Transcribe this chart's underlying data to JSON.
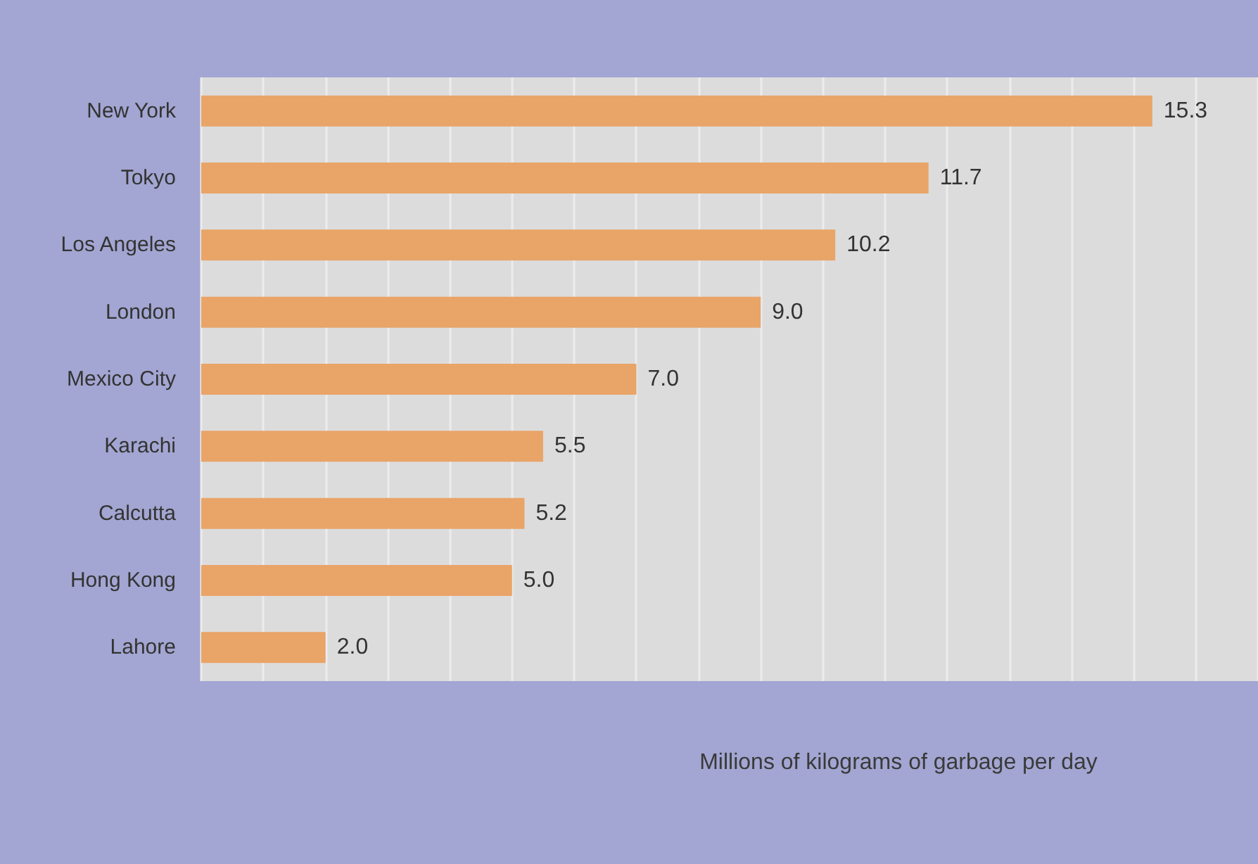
{
  "chart_data": {
    "type": "bar",
    "orientation": "horizontal",
    "xlabel": "Millions of kilograms of garbage per day",
    "categories": [
      "New York",
      "Tokyo",
      "Los Angeles",
      "London",
      "Mexico City",
      "Karachi",
      "Calcutta",
      "Hong Kong",
      "Lahore"
    ],
    "values": [
      15.3,
      11.7,
      10.2,
      9.0,
      7.0,
      5.5,
      5.2,
      5.0,
      2.0
    ],
    "value_labels": [
      "15.3",
      "11.7",
      "10.2",
      "9.0",
      "7.0",
      "5.5",
      "5.2",
      "5.0",
      "2.0"
    ],
    "color": "#e9a468",
    "xlim": [
      0,
      17
    ],
    "xticks": [
      {
        "value": 0,
        "label": null
      },
      {
        "value": 1,
        "label": null
      },
      {
        "value": 2,
        "label": null
      },
      {
        "value": 3,
        "label": null
      },
      {
        "value": 4,
        "label": null
      },
      {
        "value": 5,
        "label": null
      },
      {
        "value": 6,
        "label": null
      },
      {
        "value": 7,
        "label": null
      },
      {
        "value": 8,
        "label": null
      },
      {
        "value": 9,
        "label": null
      },
      {
        "value": 10,
        "label": null
      },
      {
        "value": 11,
        "label": null
      },
      {
        "value": 12,
        "label": null
      },
      {
        "value": 13,
        "label": null
      },
      {
        "value": 14,
        "label": null
      },
      {
        "value": 15,
        "label": null
      },
      {
        "value": 16,
        "label": null
      },
      {
        "value": 17,
        "label": null
      }
    ],
    "tick_labels": "y",
    "grid": "x"
  }
}
